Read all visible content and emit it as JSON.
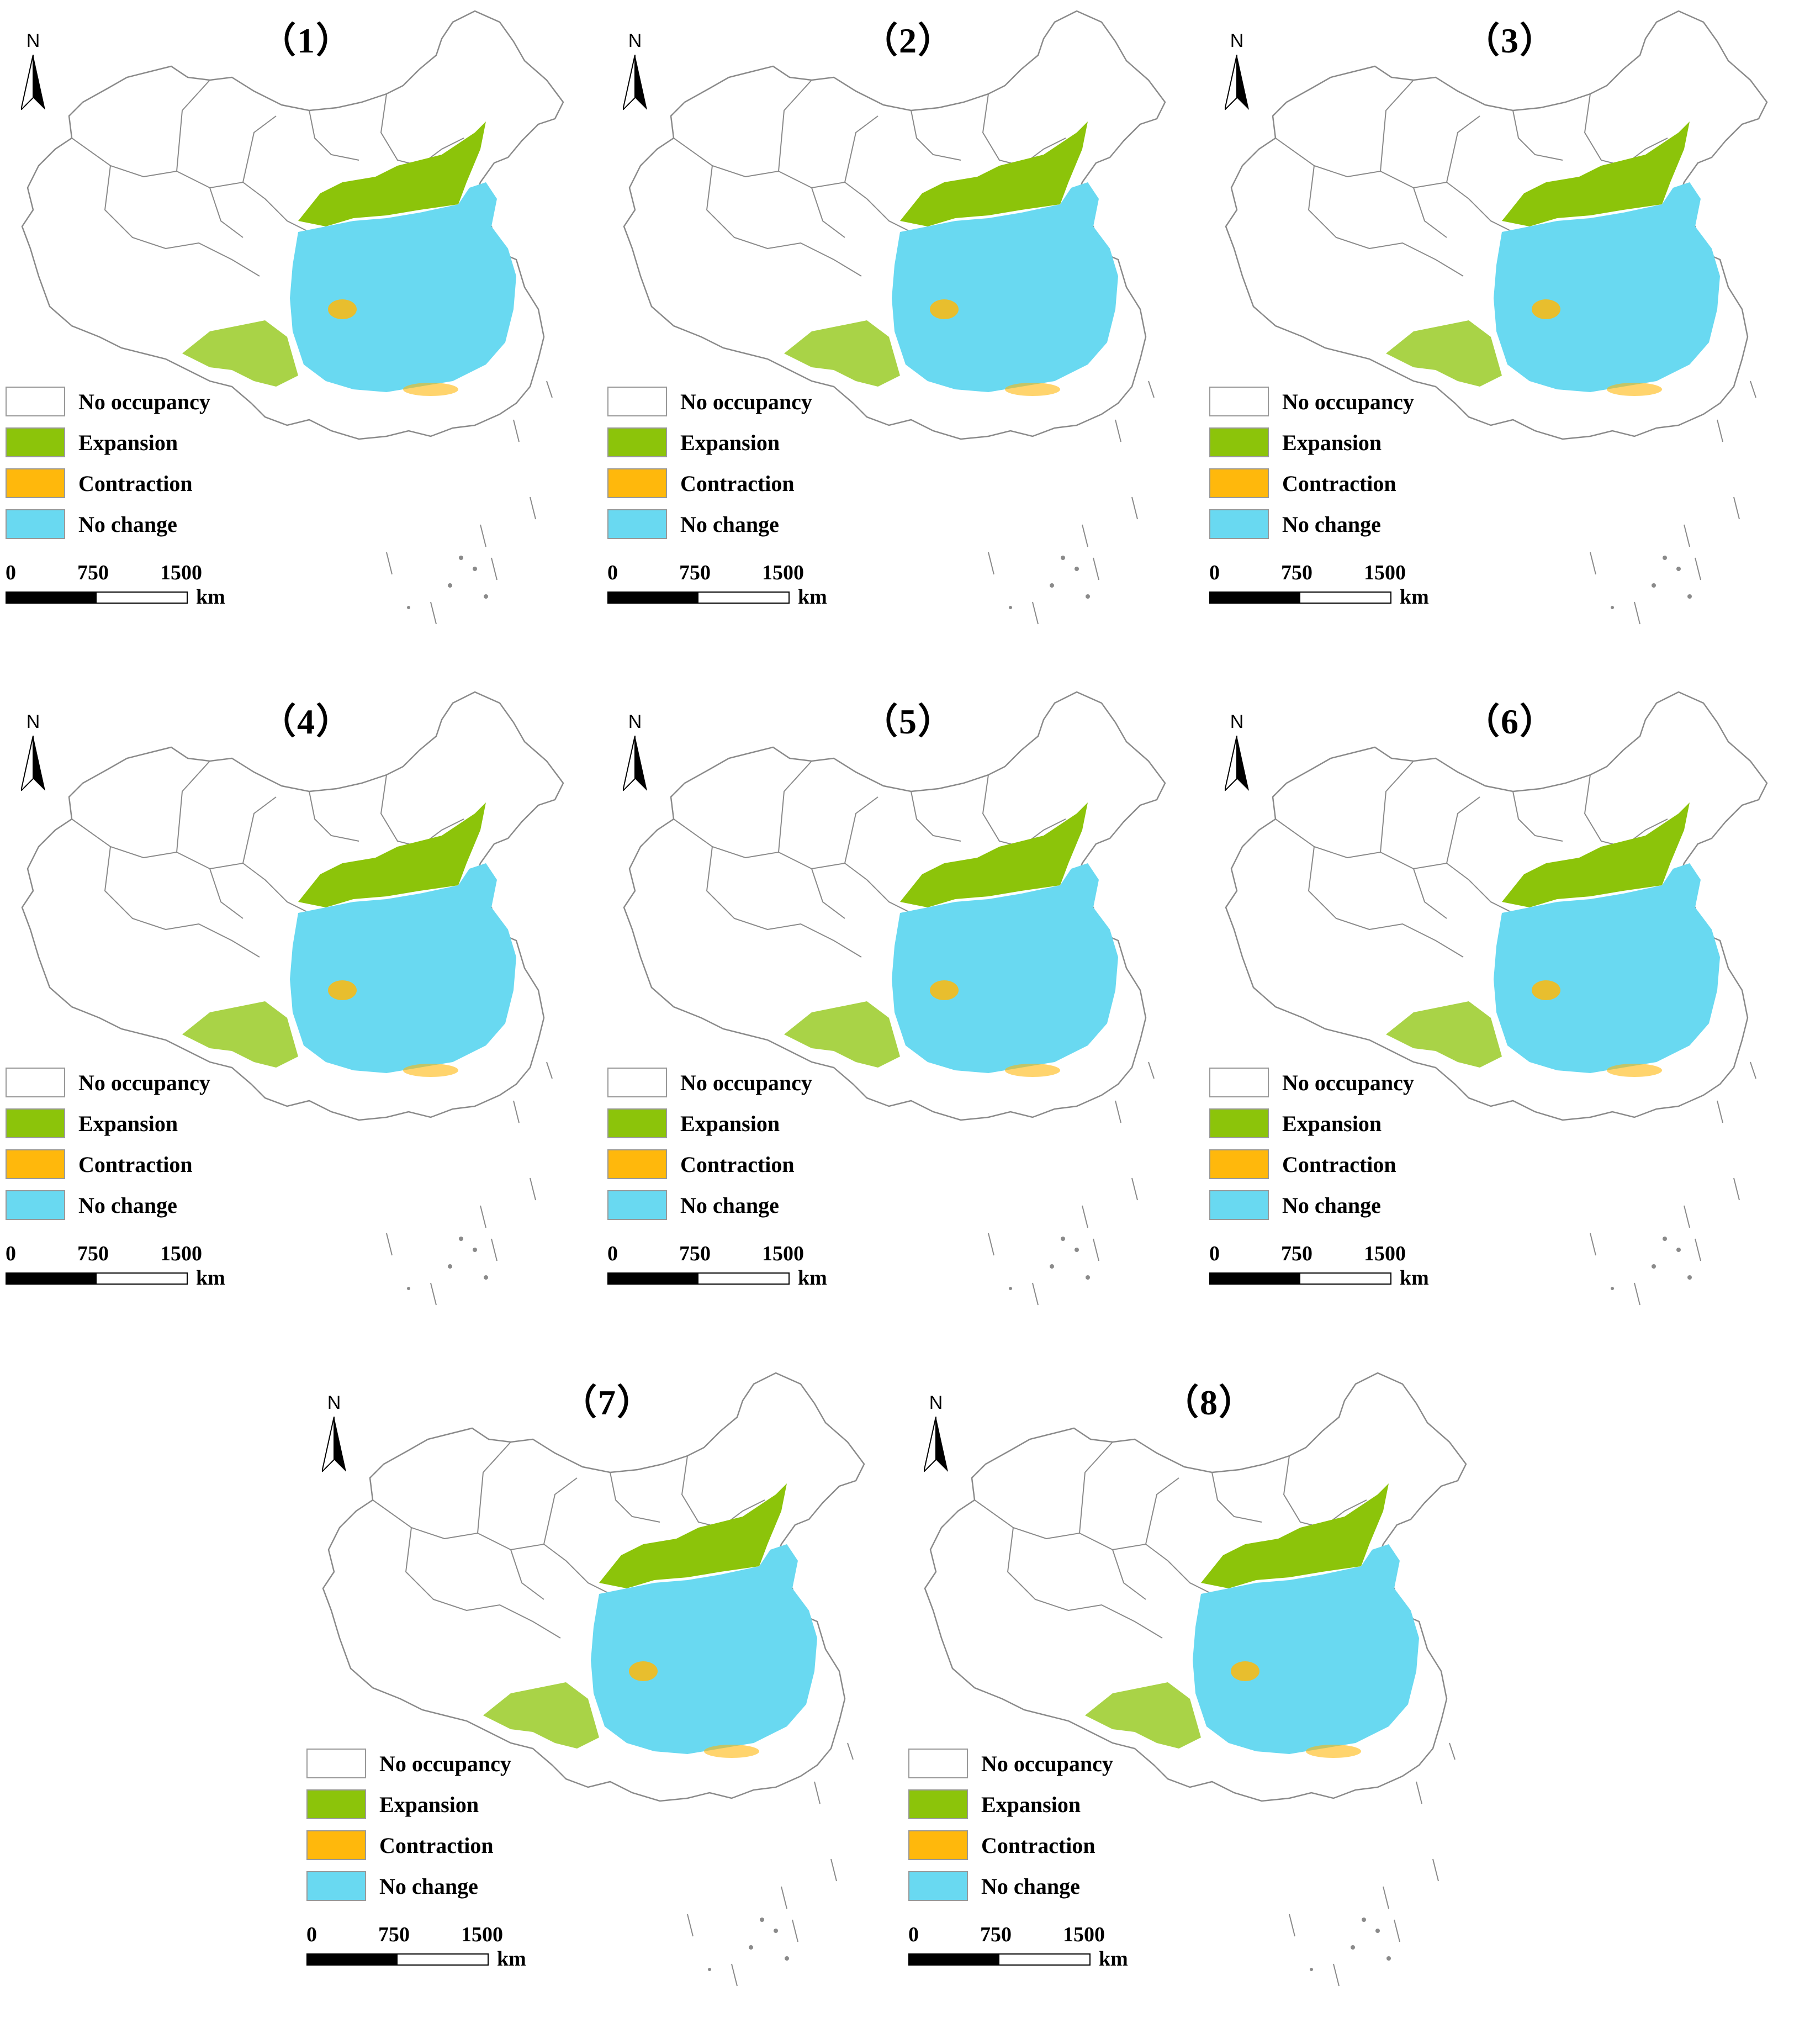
{
  "figure": {
    "colors": {
      "no_occupancy": "#ffffff",
      "expansion": "#8cc40a",
      "contraction": "#ffb80c",
      "no_change": "#69d9f1",
      "boundary": "#8a8a8a"
    },
    "legend": [
      {
        "key": "no_occupancy",
        "label": "No occupancy"
      },
      {
        "key": "expansion",
        "label": "Expansion"
      },
      {
        "key": "contraction",
        "label": "Contraction"
      },
      {
        "key": "no_change",
        "label": "No change"
      }
    ],
    "north_label": "N",
    "scale": {
      "ticks": [
        "0",
        "750",
        "1500"
      ],
      "unit": "km"
    },
    "panels": [
      {
        "title": "（1）",
        "expansion_extent": "medium",
        "contraction": "low"
      },
      {
        "title": "（2）",
        "expansion_extent": "medium",
        "contraction": "low"
      },
      {
        "title": "（3）",
        "expansion_extent": "medium",
        "contraction": "low"
      },
      {
        "title": "（4）",
        "expansion_extent": "high",
        "contraction": "low"
      },
      {
        "title": "（5）",
        "expansion_extent": "medium",
        "contraction": "medium"
      },
      {
        "title": "（6）",
        "expansion_extent": "high",
        "contraction": "medium"
      },
      {
        "title": "（7）",
        "expansion_extent": "high",
        "contraction": "low"
      },
      {
        "title": "（8）",
        "expansion_extent": "high",
        "contraction": "medium"
      }
    ]
  }
}
